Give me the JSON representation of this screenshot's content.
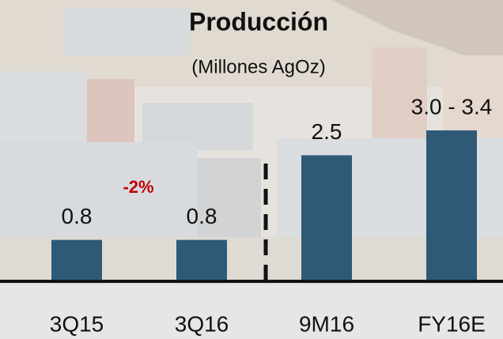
{
  "chart_data": {
    "type": "bar",
    "title": "Producción",
    "subtitle": "(Millones AgOz)",
    "categories": [
      "3Q15",
      "3Q16",
      "9M16",
      "FY16E"
    ],
    "values": [
      0.8,
      0.8,
      2.5,
      3.0
    ],
    "value_labels": [
      "0.8",
      "0.8",
      "2.5",
      "3.0 - 3.4"
    ],
    "color": "#2e5a78",
    "annotations": [
      "-2%"
    ]
  }
}
